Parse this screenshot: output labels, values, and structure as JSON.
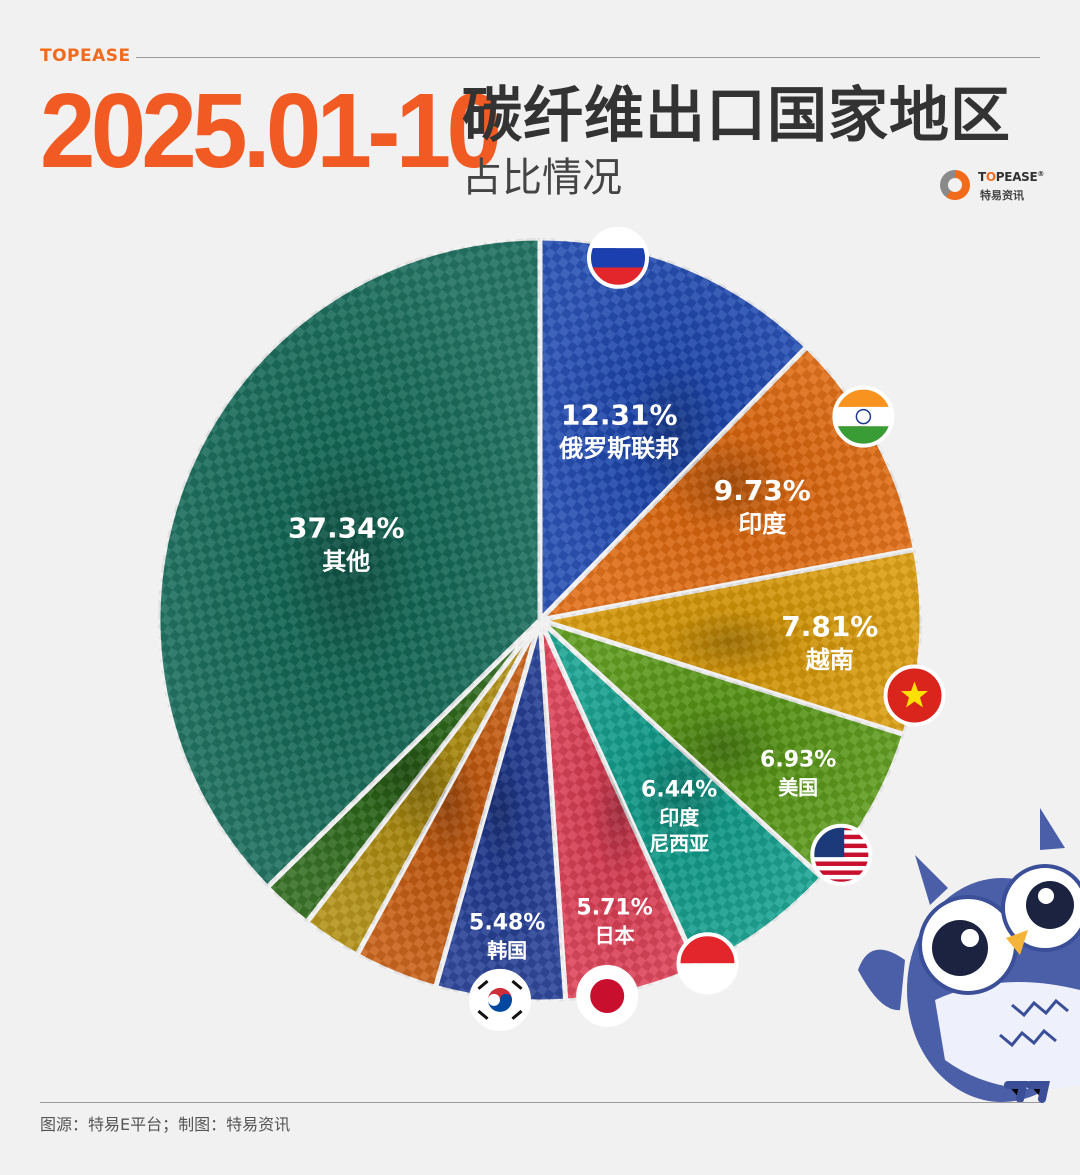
{
  "header": {
    "brand": "TOPEASE",
    "date_range": "2025.01-10",
    "title": "碳纤维出口国家地区",
    "subtitle": "占比情况",
    "logo_name_a": "T",
    "logo_name_o": "O",
    "logo_name_b": "PEASE",
    "logo_reg": "®",
    "logo_sub": "特易资讯"
  },
  "footer": {
    "source": "图源：特易E平台；制图：特易资讯"
  },
  "colors": {
    "background": "#f1f1f1",
    "accent_orange": "#f15a22",
    "russia": "#1e48b0",
    "india": "#e0690f",
    "vietnam": "#d99a08",
    "usa": "#5a9a18",
    "indonesia": "#12a08e",
    "japan": "#dd3d54",
    "korea": "#223c94",
    "unlabeled_orange": "#c75c10",
    "unlabeled_olive": "#b08f10",
    "unlabeled_green": "#2d6a1a",
    "others": "#146a58"
  },
  "chart_data": {
    "type": "pie",
    "title": "碳纤维出口国家地区",
    "subtitle": "占比情况",
    "unit": "%",
    "slices": [
      {
        "label": "俄罗斯联邦",
        "value": 12.31,
        "value_label": "12.31%",
        "color": "#1e48b0",
        "flag": "russia-flag"
      },
      {
        "label": "印度",
        "value": 9.73,
        "value_label": "9.73%",
        "color": "#e0690f",
        "flag": "india-flag"
      },
      {
        "label": "越南",
        "value": 7.81,
        "value_label": "7.81%",
        "color": "#d99a08",
        "flag": "vietnam-flag"
      },
      {
        "label": "美国",
        "value": 6.93,
        "value_label": "6.93%",
        "color": "#5a9a18",
        "flag": "usa-flag"
      },
      {
        "label": "印度\n尼西亚",
        "value": 6.44,
        "value_label": "6.44%",
        "color": "#12a08e",
        "flag": "indonesia-flag"
      },
      {
        "label": "日本",
        "value": 5.71,
        "value_label": "5.71%",
        "color": "#dd3d54",
        "flag": "japan-flag"
      },
      {
        "label": "韩国",
        "value": 5.48,
        "value_label": "5.48%",
        "color": "#223c94",
        "flag": "korea-flag"
      },
      {
        "label": "",
        "value": 3.55,
        "value_label": "",
        "color": "#c75c10",
        "flag": ""
      },
      {
        "label": "",
        "value": 2.5,
        "value_label": "",
        "color": "#b08f10",
        "flag": ""
      },
      {
        "label": "",
        "value": 2.2,
        "value_label": "",
        "color": "#2d6a1a",
        "flag": ""
      },
      {
        "label": "其他",
        "value": 37.34,
        "value_label": "37.34%",
        "color": "#146a58",
        "flag": ""
      }
    ]
  }
}
